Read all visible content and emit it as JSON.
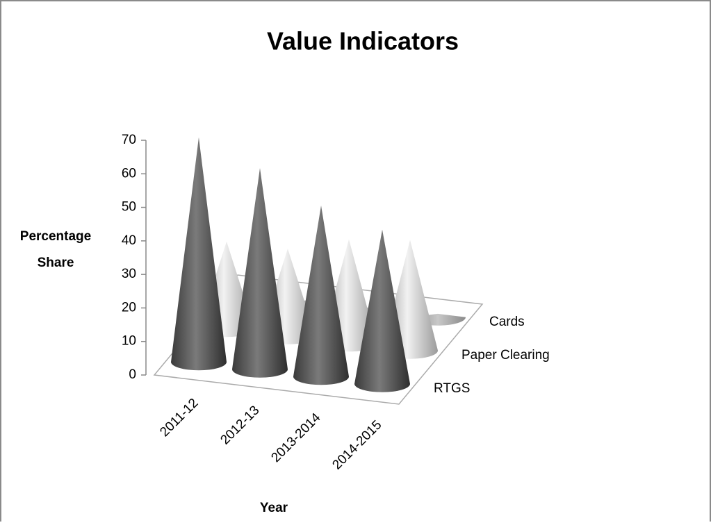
{
  "chart_data": {
    "type": "cone",
    "title": "Value Indicators",
    "ylabel": [
      "Percentage",
      "Share"
    ],
    "xlabel": "Year",
    "categories": [
      "2011-12",
      "2012-13",
      "2013-2014",
      "2014-2015"
    ],
    "series": [
      {
        "name": "RTGS",
        "color": "#5a5a5a",
        "values": [
          67,
          60,
          51,
          46
        ]
      },
      {
        "name": "Paper Clearing",
        "color": "#cfcfcf",
        "values": [
          26,
          26,
          31,
          33
        ]
      },
      {
        "name": "Cards",
        "color": "#a8a8a8",
        "values": [
          1,
          1,
          1,
          1
        ]
      }
    ],
    "ylim": [
      0,
      70
    ],
    "yticks": [
      0,
      10,
      20,
      30,
      40,
      50,
      60,
      70
    ]
  }
}
